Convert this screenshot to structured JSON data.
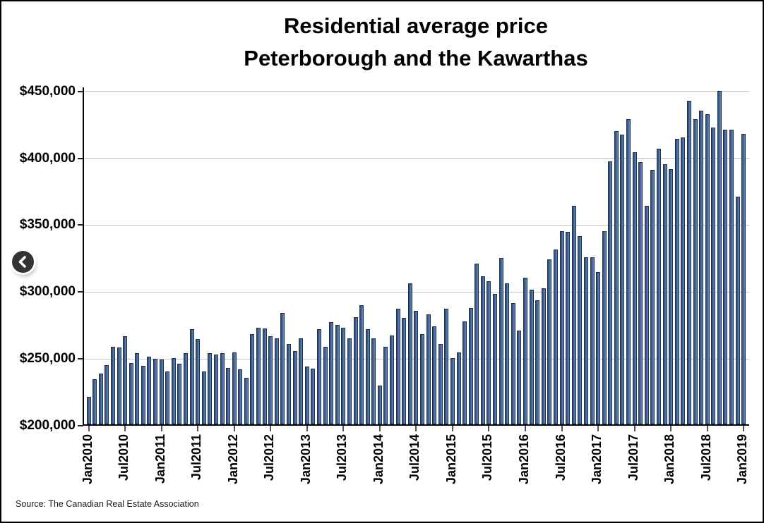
{
  "chart": {
    "title_line1": "Residential average price",
    "title_line2": "Peterborough and the Kawarthas",
    "source": "Source: The Canadian Real Estate Association"
  },
  "nav": {
    "prev_icon": "chevron-left"
  },
  "chart_data": {
    "type": "bar",
    "title": "Residential average price",
    "subtitle": "Peterborough and the Kawarthas",
    "source": "Source: The Canadian Real Estate Association",
    "legend": "none",
    "grid": "horizontal",
    "ylim": [
      200000,
      453000
    ],
    "yticks": [
      {
        "value": 200000,
        "label": "$200,000"
      },
      {
        "value": 250000,
        "label": "$250,000"
      },
      {
        "value": 300000,
        "label": "$300,000"
      },
      {
        "value": 350000,
        "label": "$350,000"
      },
      {
        "value": 400000,
        "label": "$400,000"
      },
      {
        "value": 450000,
        "label": "$450,000"
      }
    ],
    "xtick_every": 6,
    "xtick_labels": [
      "Jan2010",
      "Jul2010",
      "Jan2011",
      "Jul2011",
      "Jan2012",
      "Jul2012",
      "Jan2013",
      "Jul2013",
      "Jan2014",
      "Jul2014",
      "Jan2015",
      "Jul2015",
      "Jan2016",
      "Jul2016",
      "Jan2017",
      "Jul2017",
      "Jan2018",
      "Jul2018",
      "Jan2019"
    ],
    "categories": [
      "Jan2010",
      "Feb2010",
      "Mar2010",
      "Apr2010",
      "May2010",
      "Jun2010",
      "Jul2010",
      "Aug2010",
      "Sep2010",
      "Oct2010",
      "Nov2010",
      "Dec2010",
      "Jan2011",
      "Feb2011",
      "Mar2011",
      "Apr2011",
      "May2011",
      "Jun2011",
      "Jul2011",
      "Aug2011",
      "Sep2011",
      "Oct2011",
      "Nov2011",
      "Dec2011",
      "Jan2012",
      "Feb2012",
      "Mar2012",
      "Apr2012",
      "May2012",
      "Jun2012",
      "Jul2012",
      "Aug2012",
      "Sep2012",
      "Oct2012",
      "Nov2012",
      "Dec2012",
      "Jan2013",
      "Feb2013",
      "Mar2013",
      "Apr2013",
      "May2013",
      "Jun2013",
      "Jul2013",
      "Aug2013",
      "Sep2013",
      "Oct2013",
      "Nov2013",
      "Dec2013",
      "Jan2014",
      "Feb2014",
      "Mar2014",
      "Apr2014",
      "May2014",
      "Jun2014",
      "Jul2014",
      "Aug2014",
      "Sep2014",
      "Oct2014",
      "Nov2014",
      "Dec2014",
      "Jan2015",
      "Feb2015",
      "Mar2015",
      "Apr2015",
      "May2015",
      "Jun2015",
      "Jul2015",
      "Aug2015",
      "Sep2015",
      "Oct2015",
      "Nov2015",
      "Dec2015",
      "Jan2016",
      "Feb2016",
      "Mar2016",
      "Apr2016",
      "May2016",
      "Jun2016",
      "Jul2016",
      "Aug2016",
      "Sep2016",
      "Oct2016",
      "Nov2016",
      "Dec2016",
      "Jan2017",
      "Feb2017",
      "Mar2017",
      "Apr2017",
      "May2017",
      "Jun2017",
      "Jul2017",
      "Aug2017",
      "Sep2017",
      "Oct2017",
      "Nov2017",
      "Dec2017",
      "Jan2018",
      "Feb2018",
      "Mar2018",
      "Apr2018",
      "May2018",
      "Jun2018",
      "Jul2018",
      "Aug2018",
      "Sep2018",
      "Oct2018",
      "Nov2018",
      "Dec2018",
      "Jan2019"
    ],
    "values": [
      220500,
      234000,
      238000,
      244500,
      258000,
      257500,
      266000,
      246000,
      253500,
      244000,
      250500,
      249000,
      248500,
      239500,
      249500,
      245500,
      253000,
      271000,
      264000,
      239500,
      253000,
      252000,
      253500,
      242000,
      254000,
      241000,
      235000,
      267500,
      272000,
      271500,
      266000,
      264500,
      283500,
      260000,
      255000,
      264500,
      243500,
      241500,
      271000,
      258000,
      276500,
      274500,
      272000,
      264500,
      280000,
      289000,
      271000,
      264500,
      229000,
      258000,
      266500,
      286500,
      279500,
      305500,
      285000,
      267500,
      282500,
      273500,
      260000,
      286500,
      249500,
      254000,
      277000,
      287000,
      320000,
      310500,
      307000,
      297500,
      324500,
      305500,
      290500,
      270000,
      309500,
      300500,
      293000,
      301500,
      323500,
      330500,
      344500,
      344000,
      363500,
      341000,
      325000,
      325000,
      314000,
      344500,
      396500,
      419500,
      416500,
      428000,
      403500,
      396000,
      363500,
      390500,
      406000,
      394500,
      391000,
      413500,
      414500,
      442000,
      428500,
      434500,
      432000,
      422000,
      449500,
      420500,
      420500,
      370500,
      417000
    ],
    "bar_color": "#3c5d90",
    "bar_border_color": "#1b3050",
    "bar_highlight_color": "#8aa6cc",
    "gridline_color": "#c4c4c4",
    "axis_color": "#000000"
  }
}
